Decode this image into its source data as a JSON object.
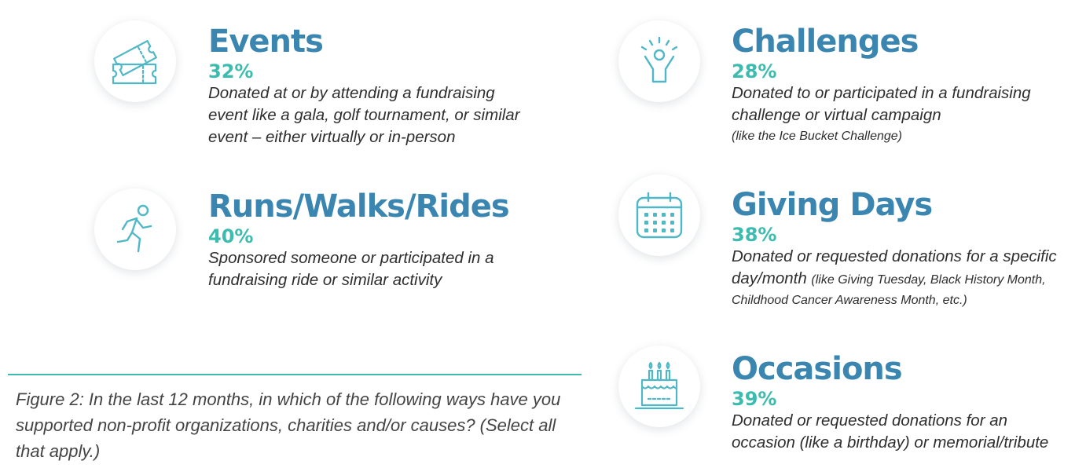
{
  "items": {
    "events": {
      "title": "Events",
      "percent": "32%",
      "desc_1": "Donated at or by attending a fundraising",
      "desc_2": "event like a gala, golf tournament, or similar",
      "desc_3": "event – either virtually or in-person",
      "icon": "ticket-icon"
    },
    "runs": {
      "title": "Runs/Walks/Rides",
      "percent": "40%",
      "desc_1": "Sponsored someone or participated in a",
      "desc_2": "fundraising ride or similar activity",
      "icon": "runner-icon"
    },
    "challenges": {
      "title": "Challenges",
      "percent": "28%",
      "desc_1": "Donated to or participated in a fundraising",
      "desc_2": "challenge or virtual campaign",
      "desc_3": "(like the Ice Bucket Challenge)",
      "icon": "cheering-person-icon"
    },
    "giving_days": {
      "title": "Giving Days",
      "percent": "38%",
      "desc_1": "Donated or requested donations for a specific",
      "desc_2a": "day/month ",
      "desc_2b": "(like Giving Tuesday, Black History Month,",
      "desc_3": "Childhood Cancer Awareness Month, etc.)",
      "icon": "calendar-icon"
    },
    "occasions": {
      "title": "Occasions",
      "percent": "39%",
      "desc_1": "Donated or requested donations for an",
      "desc_2": "occasion (like a birthday) or memorial/tribute",
      "icon": "birthday-cake-icon"
    }
  },
  "caption": "Figure 2: In the last 12 months, in which of the following ways have you supported non-profit organizations, charities and/or causes? (Select all that apply.)",
  "colors": {
    "title": "#3a86b1",
    "percent": "#3bbcae",
    "icon_stroke": "#4fb7c6",
    "rule": "#3bbcae"
  }
}
